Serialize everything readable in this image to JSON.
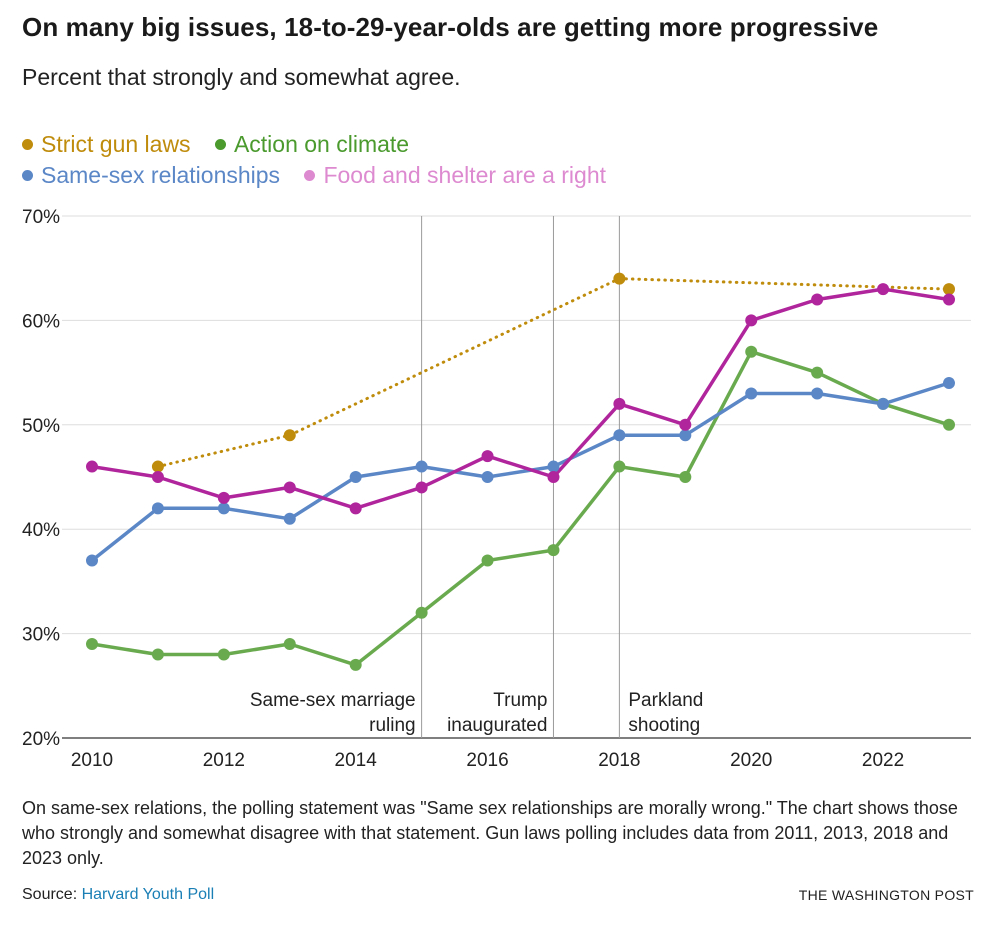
{
  "header": {
    "title": "On many big issues, 18-to-29-year-olds are getting more progressive",
    "subtitle": "Percent that strongly and somewhat agree."
  },
  "footer": {
    "note": "On same-sex relations, the polling statement was \"Same sex relationships are morally wrong.\" The chart shows those who strongly and somewhat disagree with that statement. Gun laws polling includes data from 2011, 2013, 2018 and 2023 only.",
    "source_label": "Source:",
    "source_link": "Harvard Youth Poll",
    "brand": "THE WASHINGTON POST"
  },
  "chart_data": {
    "type": "line",
    "xlim": [
      2010,
      2023
    ],
    "ylim": [
      20,
      70
    ],
    "yticks": [
      20,
      30,
      40,
      50,
      60,
      70
    ],
    "ytick_labels": [
      "20%",
      "30%",
      "40%",
      "50%",
      "60%",
      "70%"
    ],
    "xticks": [
      2010,
      2012,
      2014,
      2016,
      2018,
      2020,
      2022
    ],
    "xtick_labels": [
      "2010",
      "2012",
      "2014",
      "2016",
      "2018",
      "2020",
      "2022"
    ],
    "grid": true,
    "legend": "top-left",
    "series": [
      {
        "name": "Strict gun laws",
        "color": "#bf8c0c",
        "dashed": true,
        "x": [
          2011,
          2013,
          2018,
          2023
        ],
        "values": [
          46,
          49,
          64,
          63
        ]
      },
      {
        "name": "Action on climate",
        "color": "#6aaa4f",
        "legend_color": "#4a9a2e",
        "dashed": false,
        "x": [
          2010,
          2011,
          2012,
          2013,
          2014,
          2015,
          2016,
          2017,
          2018,
          2019,
          2020,
          2021,
          2022,
          2023
        ],
        "values": [
          29,
          28,
          28,
          29,
          27,
          32,
          37,
          38,
          46,
          45,
          57,
          55,
          52,
          50
        ]
      },
      {
        "name": "Same-sex relationships",
        "color": "#5b87c7",
        "dashed": false,
        "x": [
          2010,
          2011,
          2012,
          2013,
          2014,
          2015,
          2016,
          2017,
          2018,
          2019,
          2020,
          2021,
          2022,
          2023
        ],
        "values": [
          37,
          42,
          42,
          41,
          45,
          46,
          45,
          46,
          49,
          49,
          53,
          53,
          52,
          54
        ]
      },
      {
        "name": "Food and shelter are a right",
        "color": "#b0259c",
        "legend_color": "#dd8ad0",
        "dashed": false,
        "x": [
          2010,
          2011,
          2012,
          2013,
          2014,
          2015,
          2016,
          2017,
          2018,
          2019,
          2020,
          2021,
          2022,
          2023
        ],
        "values": [
          46,
          45,
          43,
          44,
          42,
          44,
          47,
          45,
          52,
          50,
          60,
          62,
          63,
          62
        ]
      }
    ],
    "annotations": [
      {
        "x": 2015,
        "lines": [
          "Same-sex marriage",
          "ruling"
        ],
        "align": "end"
      },
      {
        "x": 2017,
        "lines": [
          "Trump",
          "inaugurated"
        ],
        "align": "end"
      },
      {
        "x": 2018,
        "lines": [
          "Parkland",
          "shooting"
        ],
        "align": "start"
      }
    ]
  }
}
